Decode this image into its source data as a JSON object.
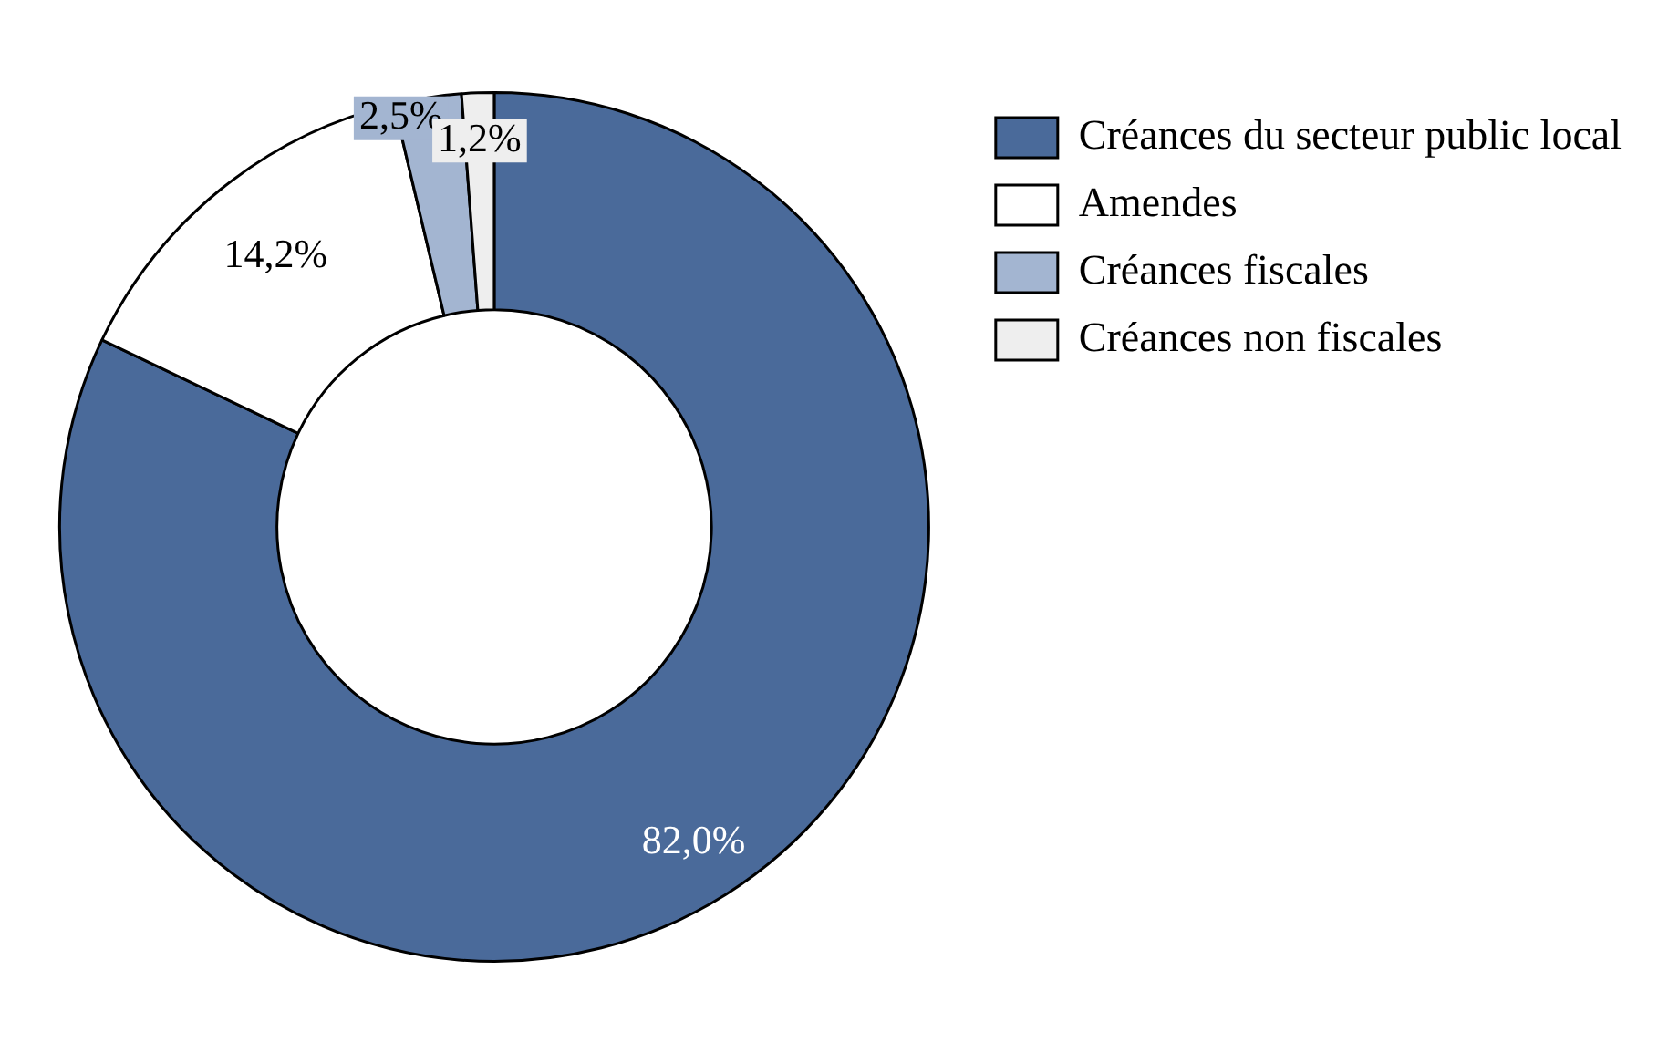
{
  "chart_data": {
    "type": "donut",
    "categories": [
      "Créances du secteur public local",
      "Amendes",
      "Créances fiscales",
      "Créances non fiscales"
    ],
    "values": [
      82.0,
      14.2,
      2.5,
      1.2
    ],
    "colors": [
      "#4a6a9a",
      "#ffffff",
      "#a3b5d1",
      "#eeeeee"
    ],
    "value_labels": [
      "82,0%",
      "14,2%",
      "2,5%",
      "1,2%"
    ],
    "legend": "top right"
  }
}
